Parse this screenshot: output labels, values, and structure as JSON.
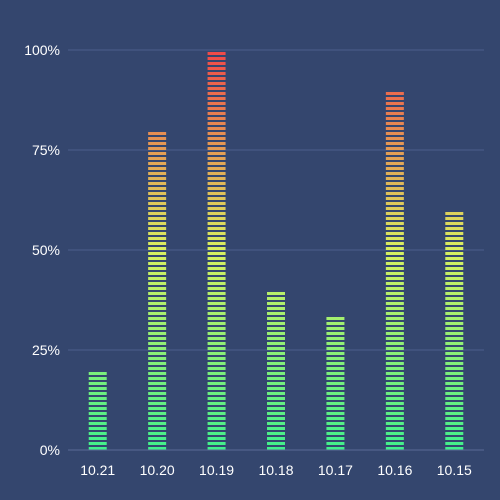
{
  "chart_data": {
    "type": "bar",
    "title": "",
    "xlabel": "",
    "ylabel": "",
    "categories": [
      "10.21",
      "10.20",
      "10.19",
      "10.18",
      "10.17",
      "10.16",
      "10.15"
    ],
    "values": [
      20,
      80,
      100,
      40,
      34,
      90,
      60
    ],
    "yticks": [
      "0%",
      "25%",
      "50%",
      "75%",
      "100%"
    ],
    "ylim": [
      0,
      100
    ],
    "grid": true,
    "legend": "none",
    "colors": {
      "background": "#34466e",
      "gridline": "#4b5e8c",
      "axis": "#5a6b95",
      "bar_bottom": "#40f08c",
      "bar_middle": "#d8f060",
      "bar_top": "#f04848"
    }
  }
}
